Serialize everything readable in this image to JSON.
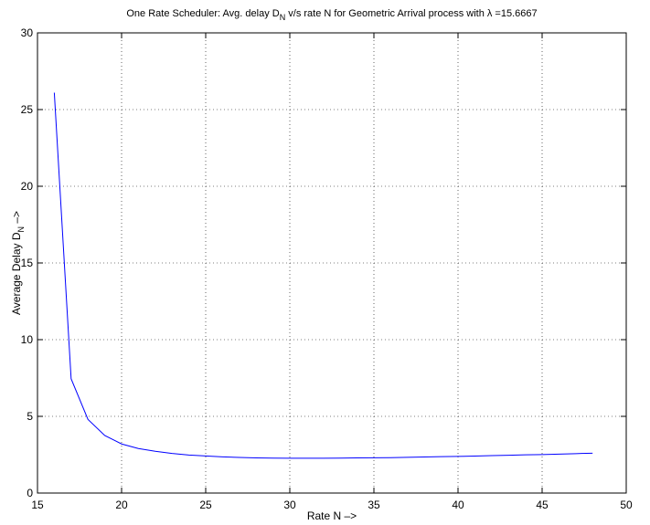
{
  "chart_data": {
    "type": "line",
    "title_parts": {
      "before": "One Rate Scheduler: Avg. delay D",
      "sub": "N",
      "middle": " v/s rate N for Geometric Arrival process with ",
      "lambda": "λ",
      "after": " =15.6667"
    },
    "xlabel": "Rate N –>",
    "ylabel_parts": {
      "before": "Average Delay D",
      "sub": "N",
      "after": " –>"
    },
    "xlim": [
      15,
      50
    ],
    "ylim": [
      0,
      30
    ],
    "xticks": [
      "15",
      "20",
      "25",
      "30",
      "35",
      "40",
      "45",
      "50"
    ],
    "yticks": [
      "0",
      "5",
      "10",
      "15",
      "20",
      "25",
      "30"
    ],
    "grid": true,
    "line_color": "#0000ff",
    "series": [
      {
        "x": [
          16,
          17,
          18,
          19,
          20,
          21,
          22,
          23,
          24,
          25,
          26,
          27,
          28,
          29,
          30,
          31,
          32,
          33,
          34,
          35,
          36,
          37,
          38,
          39,
          40,
          41,
          42,
          43,
          44,
          45,
          46,
          47,
          48
        ],
        "y": [
          26.1,
          7.45,
          4.8,
          3.75,
          3.2,
          2.9,
          2.72,
          2.58,
          2.48,
          2.42,
          2.36,
          2.32,
          2.29,
          2.28,
          2.27,
          2.27,
          2.27,
          2.28,
          2.29,
          2.3,
          2.31,
          2.33,
          2.35,
          2.37,
          2.39,
          2.41,
          2.44,
          2.46,
          2.49,
          2.51,
          2.54,
          2.57,
          2.6
        ]
      }
    ]
  }
}
